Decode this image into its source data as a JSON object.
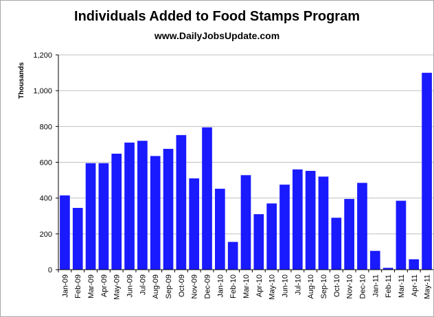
{
  "chart_data": {
    "type": "bar",
    "title": "Individuals Added to Food Stamps Program",
    "subtitle": "www.DailyJobsUpdate.com",
    "ylabel": "Thousands",
    "xlabel": "",
    "ylim": [
      0,
      1200
    ],
    "yticks": [
      "0",
      "200",
      "400",
      "600",
      "800",
      "1,000",
      "1,200"
    ],
    "grid": true,
    "legend": "none",
    "bar_color": "#1a1aff",
    "categories": [
      "Jan-09",
      "Feb-09",
      "Mar-09",
      "Apr-09",
      "May-09",
      "Jun-09",
      "Jul-09",
      "Aug-09",
      "Sep-09",
      "Oct-09",
      "Nov-09",
      "Dec-09",
      "Jan-10",
      "Feb-10",
      "Mar-10",
      "Apr-10",
      "May-10",
      "Jun-10",
      "Jul-10",
      "Aug-10",
      "Sep-10",
      "Oct-10",
      "Nov-10",
      "Dec-10",
      "Jan-11",
      "Feb-11",
      "Mar-11",
      "Apr-11",
      "May-11"
    ],
    "values": [
      415,
      345,
      595,
      595,
      648,
      710,
      720,
      635,
      675,
      752,
      510,
      795,
      452,
      155,
      528,
      310,
      370,
      475,
      560,
      552,
      520,
      290,
      395,
      485,
      105,
      10,
      385,
      58,
      1100
    ]
  }
}
